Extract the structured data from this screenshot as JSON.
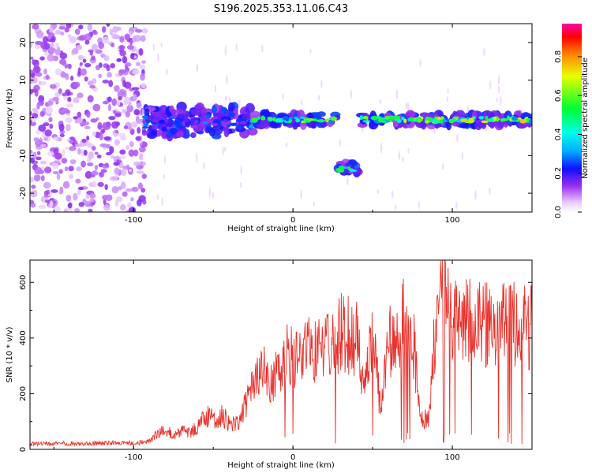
{
  "title": "S196.2025.353.11.06.C43",
  "chart_data": [
    {
      "type": "heatmap",
      "xlabel": "Height of straight line (km)",
      "ylabel": "Frequency (Hz)",
      "xlim": [
        -165,
        150
      ],
      "ylim": [
        -25,
        25
      ],
      "x_ticks": [
        -100,
        0,
        100
      ],
      "y_ticks": [
        -20,
        -10,
        0,
        10,
        20
      ],
      "colorbar": {
        "label": "Normalized spectral amplitude",
        "range": [
          0,
          0.97
        ],
        "ticks": [
          0.0,
          0.2,
          0.4,
          0.6,
          0.8
        ]
      },
      "regions": [
        {
          "name": "noise",
          "x": [
            -165,
            -93
          ],
          "y": [
            -25,
            25
          ],
          "amplitude": 0.05
        },
        {
          "name": "scattered-signal",
          "x": [
            -93,
            -25
          ],
          "y": [
            -5,
            3
          ],
          "amplitude": 0.3
        },
        {
          "name": "main-line",
          "x": [
            -25,
            28
          ],
          "y": [
            -2,
            1
          ],
          "amplitude": 0.6
        },
        {
          "name": "offset-segment",
          "x": [
            28,
            41
          ],
          "y": [
            -15,
            -12
          ],
          "amplitude": 0.7
        },
        {
          "name": "main-line-continued",
          "x": [
            42,
            150
          ],
          "y": [
            -2,
            1
          ],
          "amplitude": 0.7
        }
      ]
    },
    {
      "type": "line",
      "xlabel": "Height of straight line (km)",
      "ylabel": "SNR (10 * v/v)",
      "xlim": [
        -165,
        150
      ],
      "ylim": [
        0,
        680
      ],
      "x_ticks": [
        -100,
        0,
        100
      ],
      "y_ticks": [
        0,
        200,
        400,
        600
      ],
      "series": [
        {
          "name": "SNR",
          "color": "#e8312b",
          "x": [
            -165,
            -150,
            -140,
            -130,
            -120,
            -110,
            -100,
            -95,
            -90,
            -85,
            -80,
            -75,
            -70,
            -65,
            -60,
            -55,
            -50,
            -45,
            -40,
            -35,
            -30,
            -25,
            -20,
            -15,
            -10,
            -5,
            0,
            5,
            10,
            15,
            20,
            25,
            30,
            35,
            40,
            45,
            50,
            55,
            60,
            65,
            70,
            75,
            80,
            85,
            90,
            95,
            100,
            105,
            110,
            115,
            120,
            125,
            130,
            135,
            140,
            145,
            150
          ],
          "y": [
            20,
            20,
            22,
            20,
            22,
            24,
            22,
            25,
            30,
            60,
            70,
            50,
            65,
            60,
            80,
            120,
            110,
            120,
            100,
            90,
            160,
            220,
            300,
            250,
            280,
            350,
            330,
            340,
            380,
            350,
            360,
            370,
            420,
            410,
            400,
            200,
            420,
            140,
            380,
            420,
            460,
            430,
            100,
            120,
            470,
            560,
            460,
            440,
            470,
            450,
            460,
            430,
            440,
            460,
            450,
            440,
            440
          ]
        }
      ]
    }
  ]
}
